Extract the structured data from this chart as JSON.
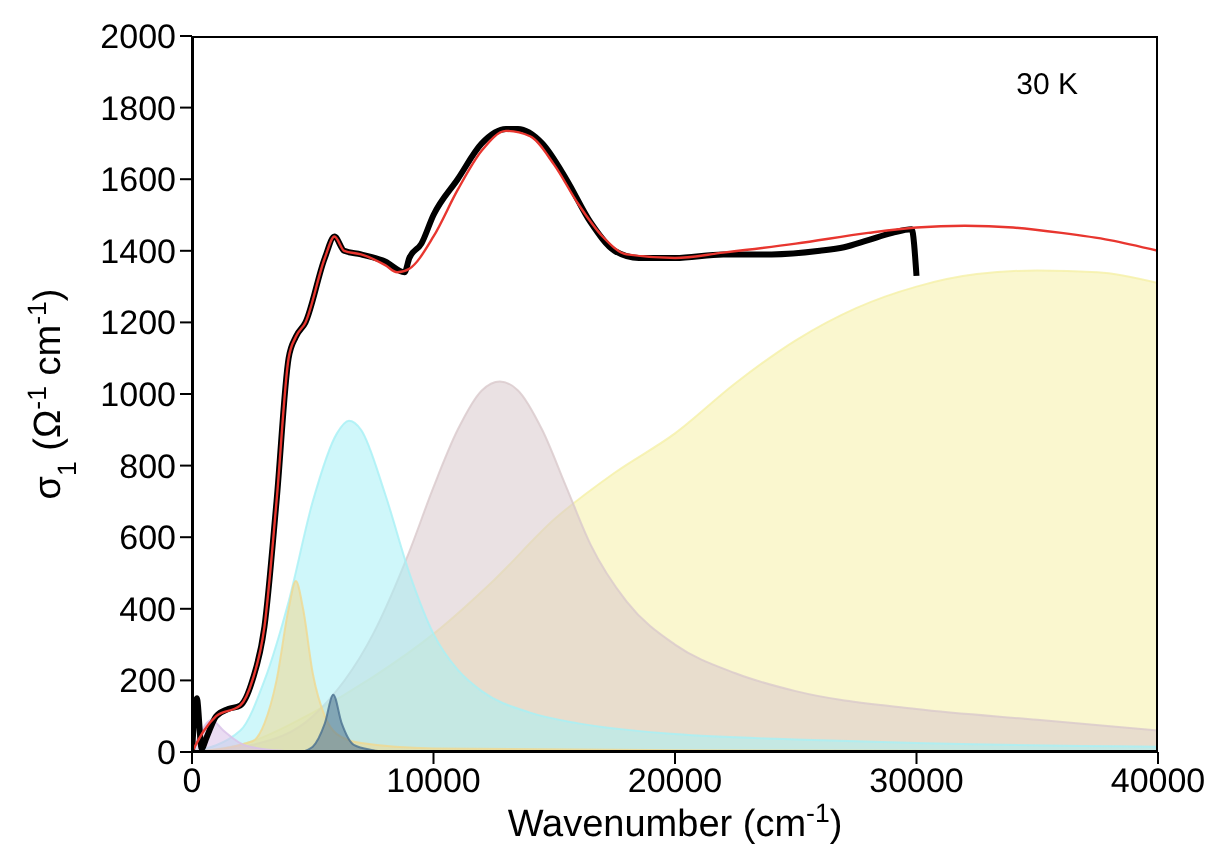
{
  "chart_data": {
    "type": "line",
    "xlabel": "Wavenumber (cm$^{-1}$)",
    "ylabel": "σ$_{1}$ (Ω$^{-1}$ cm$^{-1}$)",
    "annotations": [
      "30 K"
    ],
    "xlim": [
      0,
      40000
    ],
    "xticks": [
      0,
      10000,
      20000,
      30000,
      40000
    ],
    "ylim": [
      0,
      2000
    ],
    "yticks": [
      0,
      200,
      400,
      600,
      800,
      1000,
      1200,
      1400,
      1600,
      1800,
      2000
    ],
    "series": [
      {
        "type": "area",
        "color": "#f5f0a8",
        "x": [
          0,
          2500,
          5000,
          7500,
          10000,
          12500,
          15000,
          17500,
          20000,
          22500,
          25000,
          27500,
          30000,
          32500,
          35000,
          37500,
          40000
        ],
        "values": [
          0,
          30,
          110,
          210,
          330,
          480,
          650,
          780,
          890,
          1030,
          1150,
          1240,
          1300,
          1335,
          1345,
          1340,
          1310
        ]
      },
      {
        "type": "area",
        "color": "#d9c9cc",
        "x": [
          0,
          2500,
          5000,
          7500,
          9000,
          10000,
          11000,
          12000,
          12750,
          13500,
          14500,
          15500,
          16500,
          18000,
          20000,
          22500,
          25000,
          30000,
          35000,
          40000
        ],
        "values": [
          0,
          20,
          100,
          330,
          560,
          740,
          900,
          1010,
          1035,
          1010,
          900,
          740,
          580,
          420,
          300,
          220,
          170,
          120,
          90,
          60
        ]
      },
      {
        "type": "area",
        "color": "#a8f0f5",
        "x": [
          0,
          2000,
          3000,
          4000,
          5000,
          6000,
          6500,
          7000,
          8000,
          9000,
          10000,
          11000,
          12000,
          14000,
          16000,
          20000,
          25000,
          30000,
          40000
        ],
        "values": [
          0,
          60,
          200,
          420,
          700,
          890,
          925,
          900,
          720,
          500,
          330,
          230,
          170,
          110,
          80,
          50,
          35,
          25,
          15
        ]
      },
      {
        "type": "area",
        "color": "#f0d890",
        "x": [
          0,
          2500,
          3000,
          3500,
          4000,
          4300,
          4600,
          5000,
          5500,
          6000,
          7000,
          10000,
          20000,
          40000
        ],
        "values": [
          0,
          30,
          80,
          200,
          400,
          478,
          400,
          220,
          100,
          50,
          25,
          10,
          5,
          2
        ]
      },
      {
        "type": "area",
        "color": "#4a7090",
        "x": [
          4500,
          5000,
          5500,
          5850,
          6200,
          6700,
          7500,
          8000
        ],
        "values": [
          0,
          15,
          80,
          160,
          80,
          20,
          5,
          0
        ]
      },
      {
        "type": "area",
        "color": "#d8c0e8",
        "x": [
          0,
          400,
          800,
          1300,
          2000,
          3000,
          5000
        ],
        "values": [
          0,
          60,
          90,
          60,
          25,
          8,
          0
        ]
      },
      {
        "color": "#000000",
        "x": [
          0,
          200,
          400,
          600,
          1000,
          1500,
          2000,
          2500,
          3000,
          3500,
          4000,
          4300,
          4700,
          5500,
          5900,
          6300,
          7000,
          8000,
          8800,
          9000,
          9500,
          10000,
          11000,
          12000,
          13000,
          13500,
          14500,
          15500,
          16500,
          17500,
          18500,
          20000,
          22000,
          24000,
          26000,
          27000,
          28000,
          29000,
          29800,
          30000
        ],
        "values": [
          0,
          150,
          10,
          40,
          100,
          120,
          130,
          200,
          350,
          700,
          1100,
          1160,
          1200,
          1380,
          1440,
          1400,
          1390,
          1370,
          1340,
          1380,
          1420,
          1500,
          1600,
          1700,
          1740,
          1740,
          1700,
          1600,
          1480,
          1400,
          1380,
          1380,
          1390,
          1390,
          1400,
          1410,
          1430,
          1450,
          1460,
          1330
        ]
      },
      {
        "color": "#e8362f",
        "x": [
          0,
          500,
          1000,
          2000,
          2500,
          3000,
          3500,
          4000,
          4300,
          4700,
          5500,
          5900,
          6300,
          7000,
          8000,
          8500,
          9000,
          10000,
          11000,
          12000,
          13000,
          14000,
          15000,
          16000,
          17000,
          18000,
          20000,
          22000,
          25000,
          28000,
          30000,
          32000,
          34000,
          36000,
          38000,
          40000
        ],
        "values": [
          0,
          60,
          100,
          130,
          200,
          350,
          700,
          1100,
          1160,
          1200,
          1380,
          1440,
          1400,
          1390,
          1360,
          1340,
          1350,
          1440,
          1570,
          1680,
          1735,
          1720,
          1640,
          1530,
          1440,
          1390,
          1380,
          1395,
          1420,
          1450,
          1465,
          1470,
          1465,
          1450,
          1430,
          1400
        ]
      }
    ]
  }
}
